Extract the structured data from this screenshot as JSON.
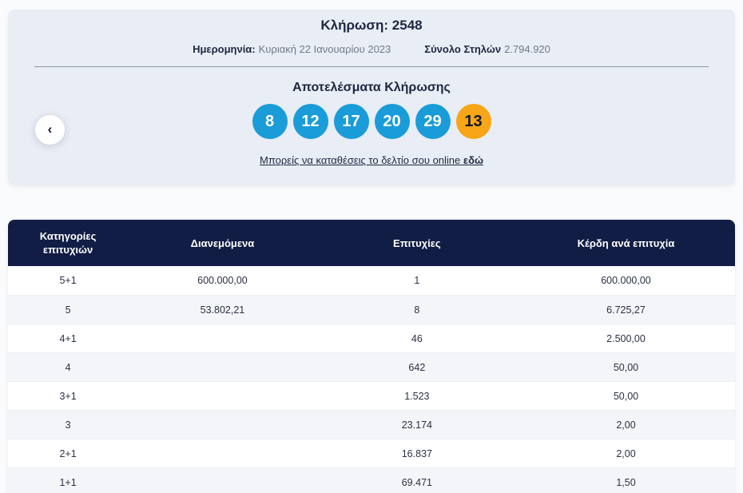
{
  "header": {
    "title": "Κλήρωση: 2548",
    "date_label": "Ημερομηνία:",
    "date_value": "Κυριακή 22 Ιανουαρίου 2023",
    "columns_label": "Σύνολο Στηλών",
    "columns_value": "2.794.920"
  },
  "nav": {
    "prev_label": "‹"
  },
  "results": {
    "heading": "Αποτελέσματα Κλήρωσης",
    "numbers": [
      "8",
      "12",
      "17",
      "20",
      "29"
    ],
    "joker": "13",
    "link_text": "Μπορείς να καταθέσεις το δελτίο σου online",
    "link_bold_word": "εδώ",
    "colors": {
      "number_ball": "#1a9cd8",
      "joker_ball": "#f7a617",
      "panel_bg": "#e9edf5",
      "table_header_bg": "#111d44"
    }
  },
  "table": {
    "headers": [
      "Κατηγορίες επιτυχιών",
      "Διανεμόμενα",
      "Επιτυχίες",
      "Κέρδη ανά επιτυχία"
    ],
    "rows": [
      {
        "category": "5+1",
        "distributed": "600.000,00",
        "winners": "1",
        "prize": "600.000,00"
      },
      {
        "category": "5",
        "distributed": "53.802,21",
        "winners": "8",
        "prize": "6.725,27"
      },
      {
        "category": "4+1",
        "distributed": "",
        "winners": "46",
        "prize": "2.500,00"
      },
      {
        "category": "4",
        "distributed": "",
        "winners": "642",
        "prize": "50,00"
      },
      {
        "category": "3+1",
        "distributed": "",
        "winners": "1.523",
        "prize": "50,00"
      },
      {
        "category": "3",
        "distributed": "",
        "winners": "23.174",
        "prize": "2,00"
      },
      {
        "category": "2+1",
        "distributed": "",
        "winners": "16.837",
        "prize": "2,00"
      },
      {
        "category": "1+1",
        "distributed": "",
        "winners": "69.471",
        "prize": "1,50"
      }
    ]
  }
}
